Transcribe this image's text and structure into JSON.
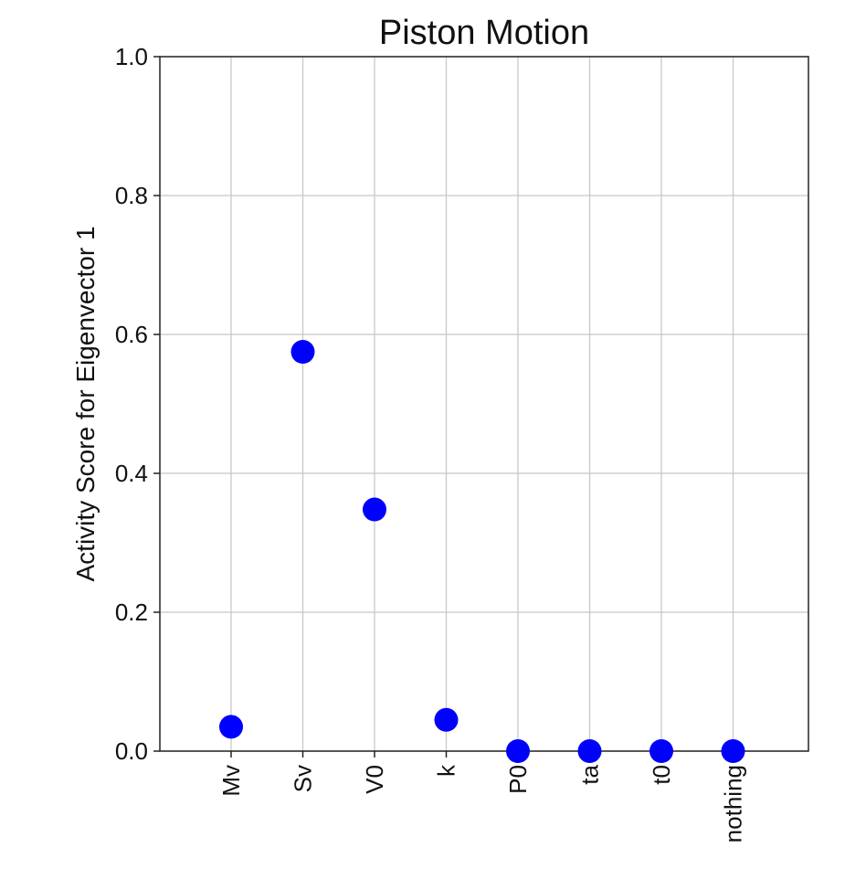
{
  "chart_data": {
    "type": "scatter",
    "title": "Piston Motion",
    "xlabel": "",
    "ylabel": "Activity Score for Eigenvector 1",
    "categories": [
      "Mv",
      "Sv",
      "V0",
      "k",
      "P0",
      "ta",
      "t0",
      "nothing"
    ],
    "series": [
      {
        "values": [
          0.035,
          0.575,
          0.348,
          0.045,
          0.0,
          0.0,
          0.0,
          0.0
        ]
      }
    ],
    "ylim": [
      0,
      1.0
    ],
    "yticks": [
      0.0,
      0.2,
      0.4,
      0.6,
      0.8,
      1.0
    ],
    "ytick_labels": [
      "0.0",
      "0.2",
      "0.4",
      "0.6",
      "0.8",
      "1.0"
    ],
    "grid": true,
    "marker_color": "#0000ff",
    "tick_label_rotation": "vertical"
  }
}
